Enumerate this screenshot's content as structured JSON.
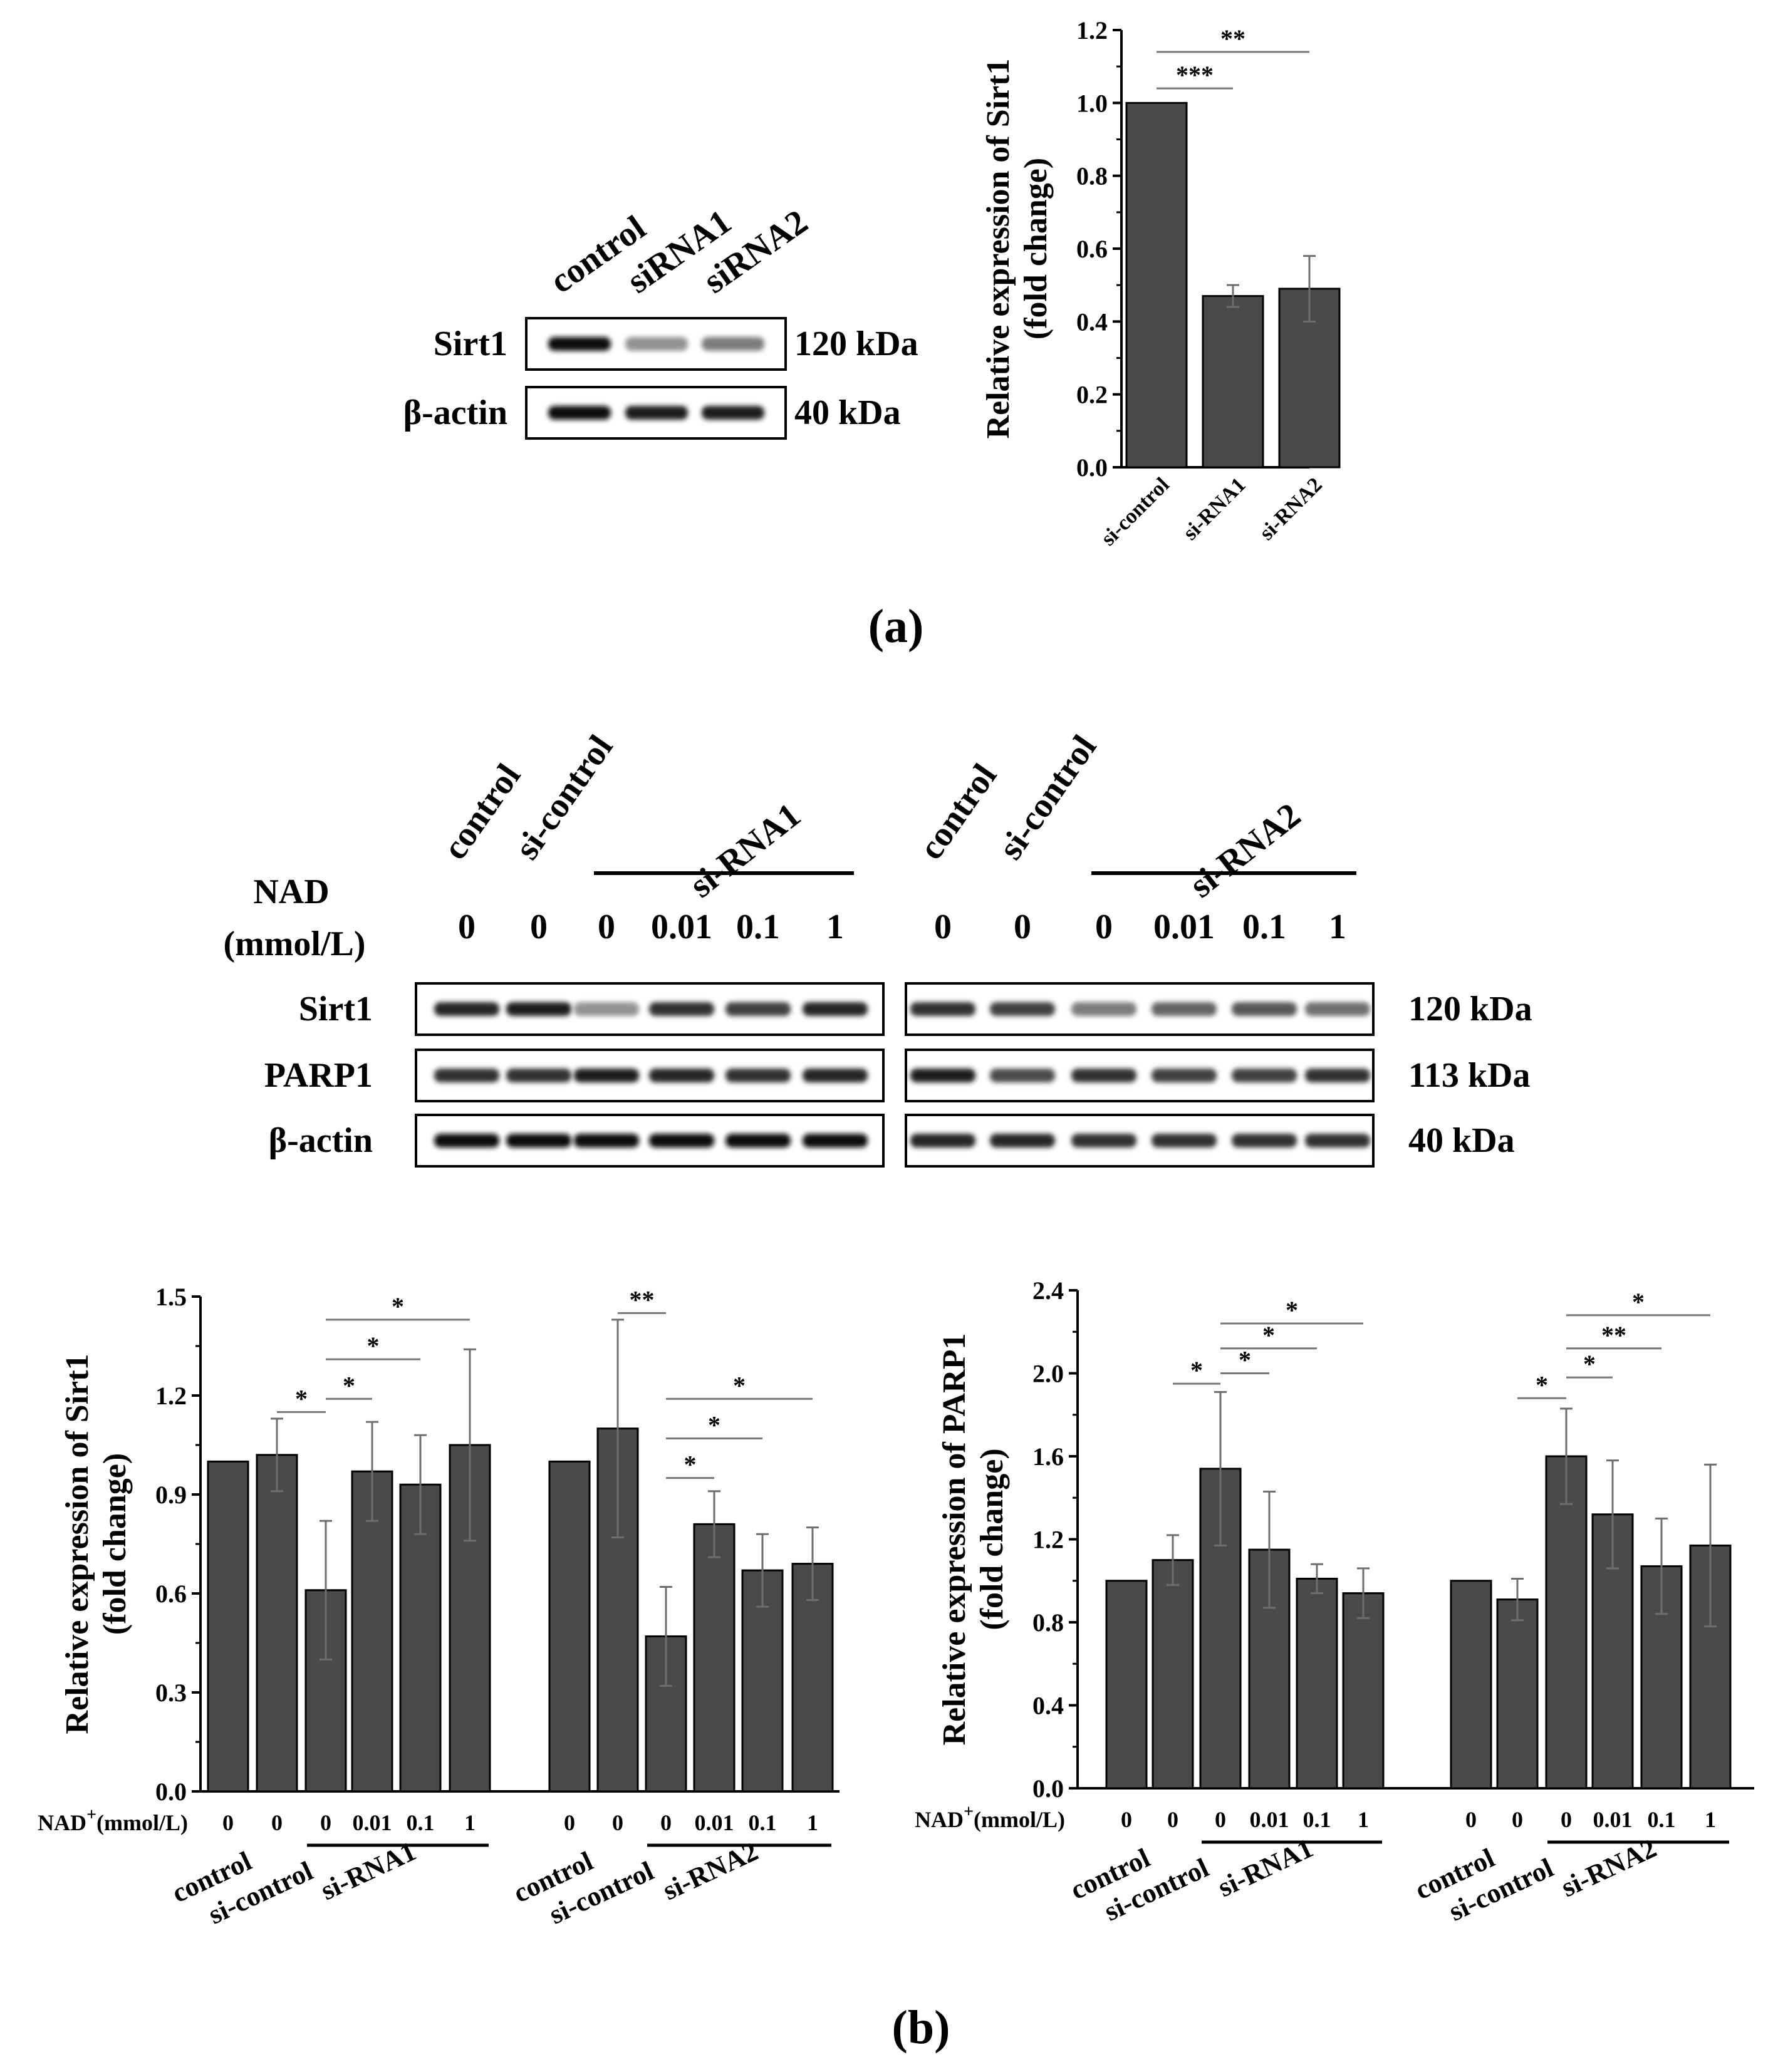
{
  "panel_labels": {
    "a": "(a)",
    "b": "(b)"
  },
  "colors": {
    "bar": "#4a4a4a",
    "axis": "#000000",
    "background": "#ffffff"
  },
  "blot_a": {
    "lanes": [
      "control",
      "siRNA1",
      "siRNA2"
    ],
    "rows": [
      {
        "label": "Sirt1",
        "kda": "120 kDa",
        "intensity": [
          1.0,
          0.45,
          0.55
        ]
      },
      {
        "label": "β-actin",
        "kda": "40 kDa",
        "intensity": [
          1.0,
          0.95,
          0.95
        ]
      }
    ]
  },
  "blot_b": {
    "groups": [
      {
        "lanes": [
          "control",
          "si-control"
        ],
        "treatment": "si-RNA1"
      },
      {
        "lanes": [
          "control",
          "si-control"
        ],
        "treatment": "si-RNA2"
      }
    ],
    "nad_label_line1": "NAD",
    "nad_label_line2": "(mmol/L)",
    "nad_values": [
      "0",
      "0",
      "0",
      "0.01",
      "0.1",
      "1"
    ],
    "rows": [
      {
        "label": "Sirt1",
        "kda": "120 kDa",
        "intensity": [
          [
            0.9,
            0.95,
            0.45,
            0.85,
            0.8,
            0.9
          ],
          [
            0.85,
            0.8,
            0.55,
            0.65,
            0.7,
            0.6
          ]
        ]
      },
      {
        "label": "PARP1",
        "kda": "113 kDa",
        "intensity": [
          [
            0.85,
            0.85,
            0.95,
            0.9,
            0.85,
            0.9
          ],
          [
            0.95,
            0.75,
            0.85,
            0.8,
            0.8,
            0.85
          ]
        ]
      },
      {
        "label": "β-actin",
        "kda": "40 kDa",
        "intensity": [
          [
            1.0,
            1.0,
            1.0,
            1.0,
            1.0,
            1.0
          ],
          [
            0.9,
            0.9,
            0.85,
            0.85,
            0.85,
            0.85
          ]
        ]
      }
    ]
  },
  "chart_data": [
    {
      "type": "bar",
      "ylabel": "Relative expression of Sirt1",
      "ylabel2": "(fold change)",
      "categories": [
        "si-control",
        "si-RNA1",
        "si-RNA2"
      ],
      "values": [
        1.0,
        0.47,
        0.49
      ],
      "errors": [
        0,
        0.03,
        0.09
      ],
      "ylim": [
        0,
        1.2
      ],
      "yticks": [
        "0.0",
        "0.2",
        "0.4",
        "0.6",
        "0.8",
        "1.0",
        "1.2"
      ],
      "significance": [
        {
          "from": 0,
          "to": 1,
          "y": 1.04,
          "label": "***"
        },
        {
          "from": 0,
          "to": 2,
          "y": 1.14,
          "label": "**"
        }
      ]
    },
    {
      "type": "bar",
      "ylabel": "Relative expression of Sirt1",
      "ylabel2": "(fold change)",
      "ylim": [
        0,
        1.5
      ],
      "yticks": [
        "0.0",
        "0.3",
        "0.6",
        "0.9",
        "1.2",
        "1.5"
      ],
      "nad_prefix": "NAD",
      "nad_suffix": "(mmol/L)",
      "nad_sup": "+",
      "nad_values": [
        "0",
        "0",
        "0",
        "0.01",
        "0.1",
        "1",
        "0",
        "0",
        "0",
        "0.01",
        "0.1",
        "1"
      ],
      "group_labels": [
        "control",
        "si-control",
        "si-RNA1",
        "control",
        "si-control",
        "si-RNA2"
      ],
      "values": [
        1.0,
        1.02,
        0.61,
        0.97,
        0.93,
        1.05,
        1.0,
        1.1,
        0.47,
        0.81,
        0.67,
        0.69
      ],
      "errors": [
        0,
        0.11,
        0.21,
        0.15,
        0.15,
        0.29,
        0,
        0.33,
        0.15,
        0.1,
        0.11,
        0.11
      ],
      "significance": [
        {
          "from": 1,
          "to": 2,
          "y": 1.15,
          "label": "*"
        },
        {
          "from": 2,
          "to": 3,
          "y": 1.19,
          "label": "*"
        },
        {
          "from": 2,
          "to": 4,
          "y": 1.31,
          "label": "*"
        },
        {
          "from": 2,
          "to": 5,
          "y": 1.43,
          "label": "*"
        },
        {
          "from": 7,
          "to": 8,
          "y": 1.45,
          "label": "**"
        },
        {
          "from": 8,
          "to": 9,
          "y": 0.95,
          "label": "*"
        },
        {
          "from": 8,
          "to": 10,
          "y": 1.07,
          "label": "*"
        },
        {
          "from": 8,
          "to": 11,
          "y": 1.19,
          "label": "*"
        }
      ]
    },
    {
      "type": "bar",
      "ylabel": "Relative expression of PARP1",
      "ylabel2": "(fold change)",
      "ylim": [
        0,
        2.4
      ],
      "yticks": [
        "0.0",
        "0.4",
        "0.8",
        "1.2",
        "1.6",
        "2.0",
        "2.4"
      ],
      "nad_prefix": "NAD",
      "nad_suffix": "(mmol/L)",
      "nad_sup": "+",
      "nad_values": [
        "0",
        "0",
        "0",
        "0.01",
        "0.1",
        "1",
        "0",
        "0",
        "0",
        "0.01",
        "0.1",
        "1"
      ],
      "group_labels": [
        "control",
        "si-control",
        "si-RNA1",
        "control",
        "si-control",
        "si-RNA2"
      ],
      "values": [
        1.0,
        1.1,
        1.54,
        1.15,
        1.01,
        0.94,
        1.0,
        0.91,
        1.6,
        1.32,
        1.07,
        1.17
      ],
      "errors": [
        0,
        0.12,
        0.37,
        0.28,
        0.07,
        0.12,
        0,
        0.1,
        0.23,
        0.26,
        0.23,
        0.39
      ],
      "significance": [
        {
          "from": 1,
          "to": 2,
          "y": 1.95,
          "label": "*"
        },
        {
          "from": 2,
          "to": 3,
          "y": 2.0,
          "label": "*"
        },
        {
          "from": 2,
          "to": 4,
          "y": 2.12,
          "label": "*"
        },
        {
          "from": 2,
          "to": 5,
          "y": 2.24,
          "label": "*"
        },
        {
          "from": 7,
          "to": 8,
          "y": 1.88,
          "label": "*"
        },
        {
          "from": 8,
          "to": 9,
          "y": 1.98,
          "label": "*"
        },
        {
          "from": 8,
          "to": 10,
          "y": 2.12,
          "label": "**"
        },
        {
          "from": 8,
          "to": 11,
          "y": 2.28,
          "label": "*"
        }
      ]
    }
  ]
}
